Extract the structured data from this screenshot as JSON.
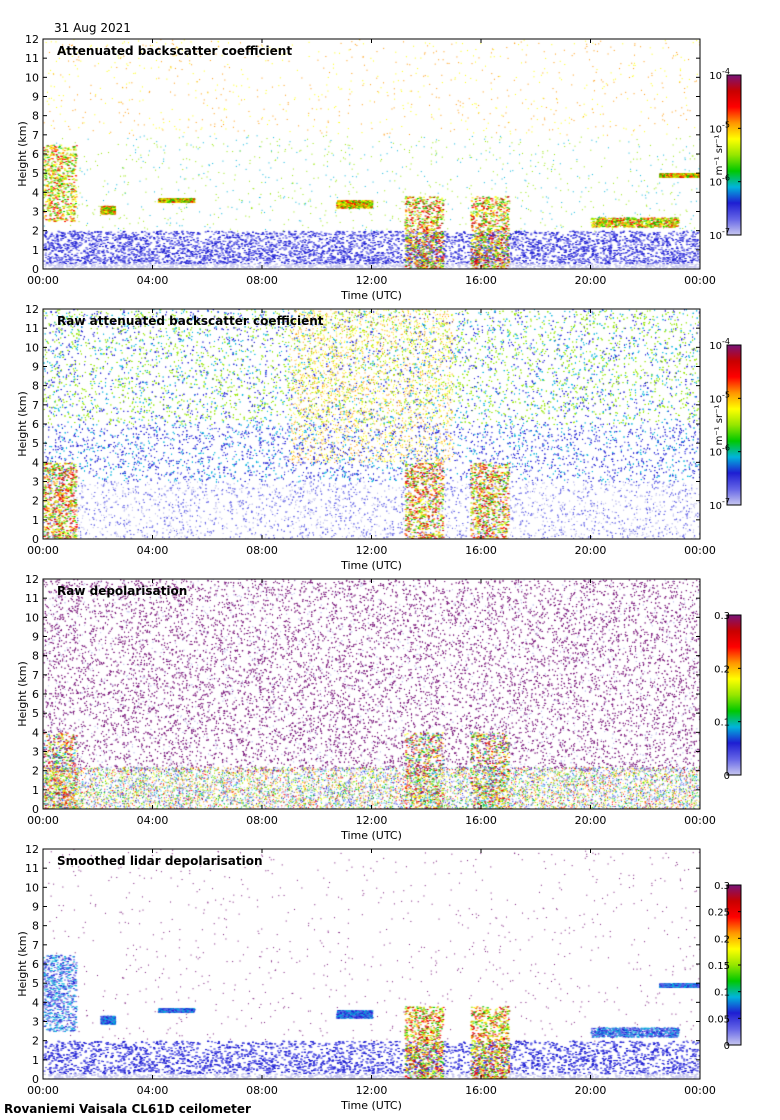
{
  "date": "31 Aug 2021",
  "footer": "Rovaniemi Vaisala CL61D ceilometer",
  "colors": {
    "scale": [
      "#ffffff",
      "#c8c8f0",
      "#6464e6",
      "#1e1ed2",
      "#00b4dc",
      "#00c800",
      "#96e600",
      "#ffff00",
      "#ff9600",
      "#ff0000",
      "#c80000",
      "#781478"
    ]
  },
  "chart_data": [
    {
      "type": "heatmap",
      "title": "Attenuated backscatter coefficient",
      "xlabel": "Time (UTC)",
      "ylabel": "Height (km)",
      "x_ticks": [
        "00:00",
        "04:00",
        "08:00",
        "12:00",
        "16:00",
        "20:00",
        "00:00"
      ],
      "y_ticks": [
        "0",
        "1",
        "2",
        "3",
        "4",
        "5",
        "6",
        "7",
        "8",
        "9",
        "10",
        "11",
        "12"
      ],
      "xlim": [
        0,
        24
      ],
      "ylim": [
        0,
        12
      ],
      "colorbar": {
        "scale": "log",
        "ticks": [
          {
            "base": "10",
            "exp": "-4"
          },
          {
            "base": "10",
            "exp": "-5"
          },
          {
            "base": "10",
            "exp": "-6"
          },
          {
            "base": "10",
            "exp": "-7"
          }
        ],
        "unit": "m⁻¹ sr⁻¹"
      }
    },
    {
      "type": "heatmap",
      "title": "Raw attenuated backscatter coefficient",
      "xlabel": "Time (UTC)",
      "ylabel": "Height (km)",
      "x_ticks": [
        "00:00",
        "04:00",
        "08:00",
        "12:00",
        "16:00",
        "20:00",
        "00:00"
      ],
      "y_ticks": [
        "0",
        "1",
        "2",
        "3",
        "4",
        "5",
        "6",
        "7",
        "8",
        "9",
        "10",
        "11",
        "12"
      ],
      "xlim": [
        0,
        24
      ],
      "ylim": [
        0,
        12
      ],
      "colorbar": {
        "scale": "log",
        "ticks": [
          {
            "base": "10",
            "exp": "-4"
          },
          {
            "base": "10",
            "exp": "-5"
          },
          {
            "base": "10",
            "exp": "-6"
          },
          {
            "base": "10",
            "exp": "-7"
          }
        ],
        "unit": "m⁻¹ sr⁻¹"
      }
    },
    {
      "type": "heatmap",
      "title": "Raw depolarisation",
      "xlabel": "Time (UTC)",
      "ylabel": "Height (km)",
      "x_ticks": [
        "00:00",
        "04:00",
        "08:00",
        "12:00",
        "16:00",
        "20:00",
        "00:00"
      ],
      "y_ticks": [
        "0",
        "1",
        "2",
        "3",
        "4",
        "5",
        "6",
        "7",
        "8",
        "9",
        "10",
        "11",
        "12"
      ],
      "xlim": [
        0,
        24
      ],
      "ylim": [
        0,
        12
      ],
      "colorbar": {
        "scale": "linear",
        "ticks": [
          "0.3",
          "0.2",
          "0.1",
          "0"
        ],
        "unit": ""
      }
    },
    {
      "type": "heatmap",
      "title": "Smoothed lidar depolarisation",
      "xlabel": "Time (UTC)",
      "ylabel": "Height (km)",
      "x_ticks": [
        "00:00",
        "04:00",
        "08:00",
        "12:00",
        "16:00",
        "20:00",
        "00:00"
      ],
      "y_ticks": [
        "0",
        "1",
        "2",
        "3",
        "4",
        "5",
        "6",
        "7",
        "8",
        "9",
        "10",
        "11",
        "12"
      ],
      "xlim": [
        0,
        24
      ],
      "ylim": [
        0,
        12
      ],
      "colorbar": {
        "scale": "linear",
        "ticks": [
          "0.3",
          "0.25",
          "0.2",
          "0.15",
          "0.1",
          "0.05",
          "0"
        ],
        "unit": ""
      }
    }
  ]
}
